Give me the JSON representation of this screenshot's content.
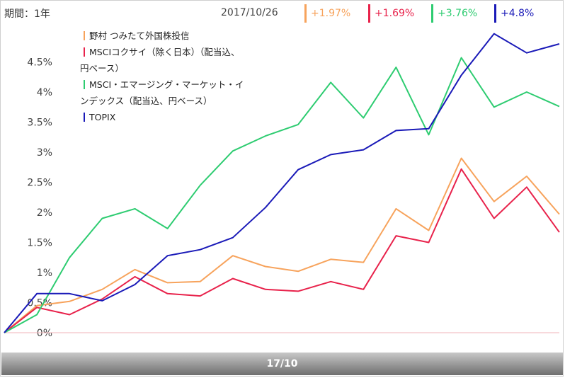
{
  "header": {
    "period": "期間：1年",
    "date": "2017/10/26",
    "changes": [
      {
        "text": "+1.97%",
        "color": "#f7a35c"
      },
      {
        "text": "+1.69%",
        "color": "#e8224b"
      },
      {
        "text": "+3.76%",
        "color": "#2ecc71"
      },
      {
        "text": "+4.8%",
        "color": "#1a1ab8"
      }
    ]
  },
  "chart_data": {
    "type": "line",
    "title": "",
    "xlabel": "",
    "ylabel": "",
    "x_tick_labels": [
      "17/10"
    ],
    "y_tick_labels": [
      "0%",
      "0.5%",
      "1%",
      "1.5%",
      "2%",
      "2.5%",
      "3%",
      "3.5%",
      "4%",
      "4.5%"
    ],
    "ylim": [
      0,
      5
    ],
    "grid": false,
    "legend_position": "top-left",
    "legend": [
      {
        "line1": "野村 つみたて外国株投信",
        "line2": "",
        "color": "#f7a35c"
      },
      {
        "line1": "MSCIコクサイ（除く日本）（配当込、",
        "line2": "円ベース）",
        "color": "#e8224b"
      },
      {
        "line1": "MSCI・エマージング・マーケット・イ",
        "line2": "ンデックス（配当込、円ベース）",
        "color": "#2ecc71"
      },
      {
        "line1": "TOPIX",
        "line2": "",
        "color": "#1a1ab8"
      }
    ],
    "series": [
      {
        "name": "野村 つみたて外国株投信",
        "color": "#f7a35c",
        "values": [
          0,
          0.45,
          0.52,
          0.72,
          1.05,
          0.83,
          0.85,
          1.28,
          1.1,
          1.02,
          1.22,
          1.17,
          2.06,
          1.7,
          2.9,
          2.18,
          2.6,
          1.97
        ]
      },
      {
        "name": "MSCIコクサイ（除く日本）（配当込、円ベース）",
        "color": "#e8224b",
        "values": [
          0,
          0.42,
          0.3,
          0.56,
          0.93,
          0.65,
          0.61,
          0.9,
          0.72,
          0.69,
          0.85,
          0.72,
          1.61,
          1.5,
          2.72,
          1.9,
          2.42,
          1.67
        ]
      },
      {
        "name": "MSCI・エマージング・マーケット・インデックス（配当込、円ベース）",
        "color": "#2ecc71",
        "values": [
          0,
          0.3,
          1.25,
          1.9,
          2.06,
          1.73,
          2.45,
          3.02,
          3.27,
          3.46,
          4.16,
          3.57,
          4.41,
          3.29,
          4.57,
          3.75,
          4.0,
          3.76
        ]
      },
      {
        "name": "TOPIX",
        "color": "#1a1ab8",
        "values": [
          0,
          0.65,
          0.65,
          0.53,
          0.8,
          1.28,
          1.38,
          1.58,
          2.08,
          2.71,
          2.96,
          3.04,
          3.36,
          3.39,
          4.28,
          4.97,
          4.65,
          4.8
        ]
      }
    ]
  }
}
